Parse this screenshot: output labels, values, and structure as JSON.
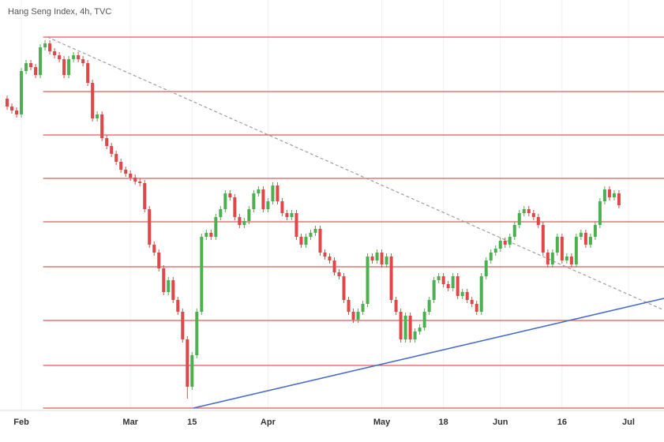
{
  "chart_data": {
    "type": "candlestick",
    "title": "Hang Seng Index, 4h, TVC",
    "open": [
      21750,
      21650,
      21600,
      21550,
      22100,
      22200,
      22150,
      22050,
      22400,
      22450,
      22350,
      22300,
      22250,
      22050,
      22250,
      22300,
      22250,
      22200,
      21950,
      21500,
      21550,
      21250,
      21150,
      21050,
      20950,
      20850,
      20800,
      20750,
      20700,
      20680,
      20350,
      19900,
      19800,
      19600,
      19300,
      19450,
      19200,
      19050,
      18700,
      18100,
      18500,
      19050,
      20000,
      20050,
      20000,
      20250,
      20350,
      20550,
      20500,
      20250,
      20150,
      20200,
      20350,
      20550,
      20600,
      20350,
      20450,
      20650,
      20450,
      20300,
      20250,
      20300,
      20000,
      19900,
      20000,
      20050,
      20100,
      19800,
      19750,
      19700,
      19550,
      19500,
      19200,
      19050,
      18950,
      19050,
      19150,
      19750,
      19700,
      19800,
      19650,
      19750,
      19200,
      19050,
      18700,
      19000,
      18700,
      18800,
      18850,
      19050,
      19200,
      19450,
      19500,
      19400,
      19350,
      19500,
      19250,
      19300,
      19200,
      19150,
      19050,
      19500,
      19700,
      19800,
      19850,
      19950,
      19900,
      20000,
      20150,
      20300,
      20350,
      20300,
      20250,
      20150,
      19800,
      19650,
      19800,
      20000,
      19700,
      19750,
      19650,
      20000,
      20050,
      19900,
      20000,
      20150,
      20450,
      20600,
      20500,
      20550
    ],
    "high": [
      21790,
      21690,
      21640,
      22140,
      22240,
      22240,
      22190,
      22440,
      22490,
      22490,
      22390,
      22340,
      22290,
      22290,
      22340,
      22340,
      22290,
      22240,
      21990,
      21590,
      21590,
      21290,
      21190,
      21090,
      20990,
      20890,
      20840,
      20790,
      20740,
      20720,
      20390,
      19940,
      19840,
      19640,
      19490,
      19490,
      19240,
      19090,
      18740,
      18540,
      19090,
      20040,
      20090,
      20090,
      20290,
      20390,
      20590,
      20590,
      20540,
      20290,
      20240,
      20390,
      20590,
      20640,
      20640,
      20490,
      20690,
      20690,
      20490,
      20340,
      20340,
      20340,
      20040,
      20040,
      20090,
      20140,
      20140,
      19840,
      19790,
      19740,
      19590,
      19540,
      19240,
      19090,
      19090,
      19190,
      19790,
      19790,
      19840,
      19840,
      19790,
      19790,
      19240,
      19090,
      19040,
      19040,
      18840,
      18890,
      19090,
      19240,
      19490,
      19540,
      19540,
      19440,
      19540,
      19540,
      19340,
      19340,
      19240,
      19190,
      19540,
      19740,
      19840,
      19890,
      19990,
      19990,
      20040,
      20190,
      20340,
      20390,
      20390,
      20340,
      20290,
      20190,
      19840,
      19840,
      20040,
      20040,
      19790,
      19790,
      20040,
      20090,
      20090,
      20040,
      20190,
      20490,
      20640,
      20640,
      20590,
      20590
    ],
    "low": [
      21610,
      21560,
      21510,
      21510,
      22060,
      22110,
      22010,
      22010,
      22360,
      22310,
      22260,
      22210,
      22010,
      22010,
      22210,
      22210,
      22160,
      21910,
      21460,
      21460,
      21210,
      21110,
      21010,
      20910,
      20810,
      20760,
      20710,
      20660,
      20640,
      20310,
      19860,
      19760,
      19560,
      19260,
      19260,
      19160,
      19010,
      18660,
      17950,
      18060,
      18460,
      19010,
      19960,
      19960,
      19960,
      20210,
      20310,
      20460,
      20210,
      20110,
      20110,
      20160,
      20310,
      20510,
      20310,
      20310,
      20410,
      20410,
      20260,
      20210,
      20210,
      19960,
      19860,
      19860,
      19960,
      20010,
      19760,
      19710,
      19660,
      19510,
      19460,
      19160,
      19010,
      18910,
      18910,
      19010,
      19110,
      19660,
      19660,
      19610,
      19610,
      19160,
      19010,
      18660,
      18660,
      18660,
      18660,
      18760,
      18810,
      19010,
      19160,
      19410,
      19360,
      19310,
      19310,
      19210,
      19210,
      19160,
      19110,
      19010,
      19010,
      19460,
      19660,
      19760,
      19810,
      19860,
      19860,
      19960,
      20110,
      20260,
      20260,
      20210,
      20110,
      19760,
      19610,
      19610,
      19760,
      19660,
      19660,
      19610,
      19610,
      19960,
      19860,
      19860,
      19960,
      20110,
      20410,
      20460,
      20460,
      20360
    ],
    "close": [
      21650,
      21600,
      21550,
      22100,
      22200,
      22150,
      22050,
      22400,
      22450,
      22350,
      22300,
      22250,
      22050,
      22250,
      22300,
      22250,
      22200,
      21950,
      21500,
      21550,
      21250,
      21150,
      21050,
      20950,
      20850,
      20800,
      20750,
      20700,
      20680,
      20350,
      19900,
      19800,
      19600,
      19300,
      19450,
      19200,
      19050,
      18700,
      18100,
      18500,
      19050,
      20000,
      20050,
      20000,
      20250,
      20350,
      20550,
      20500,
      20250,
      20150,
      20200,
      20350,
      20550,
      20600,
      20350,
      20450,
      20650,
      20450,
      20300,
      20250,
      20300,
      20000,
      19900,
      20000,
      20050,
      20100,
      19800,
      19750,
      19700,
      19550,
      19500,
      19200,
      19050,
      18950,
      19050,
      19150,
      19750,
      19700,
      19800,
      19650,
      19750,
      19200,
      19050,
      18700,
      19000,
      18700,
      18800,
      18850,
      19050,
      19200,
      19450,
      19500,
      19400,
      19350,
      19500,
      19250,
      19300,
      19200,
      19150,
      19050,
      19500,
      19700,
      19800,
      19850,
      19950,
      19900,
      20000,
      20150,
      20300,
      20350,
      20300,
      20250,
      20150,
      19800,
      19650,
      19800,
      20000,
      19700,
      19750,
      19650,
      20000,
      20050,
      19900,
      20000,
      20150,
      20450,
      20600,
      20500,
      20550,
      20400
    ],
    "up_color": "#4caf50",
    "down_color": "#e04848",
    "xlim": [
      -1.5,
      138.5
    ],
    "ylim": [
      17800,
      23000
    ],
    "xticks": [
      {
        "value": 3,
        "label": "Feb"
      },
      {
        "value": 26,
        "label": "Mar"
      },
      {
        "value": 39,
        "label": "15"
      },
      {
        "value": 55,
        "label": "Apr"
      },
      {
        "value": 79,
        "label": "May"
      },
      {
        "value": 92,
        "label": "18"
      },
      {
        "value": 104,
        "label": "Jun"
      },
      {
        "value": 117,
        "label": "16"
      },
      {
        "value": 131,
        "label": "Jul"
      }
    ],
    "grid": true,
    "levels": [
      22530,
      21840,
      21290,
      20740,
      20190,
      19620,
      18940,
      18370,
      17830
    ],
    "level_color": "#e05a5a",
    "level_start": 7.6,
    "trendlines": [
      {
        "x": [
          8.5,
          138.5
        ],
        "y": [
          22530,
          19070
        ],
        "color": "#9e9e9e",
        "dashed": true
      },
      {
        "x": [
          39.3,
          138.5
        ],
        "y": [
          17830,
          19220
        ],
        "color": "#4a6cc9",
        "dashed": false
      }
    ]
  }
}
